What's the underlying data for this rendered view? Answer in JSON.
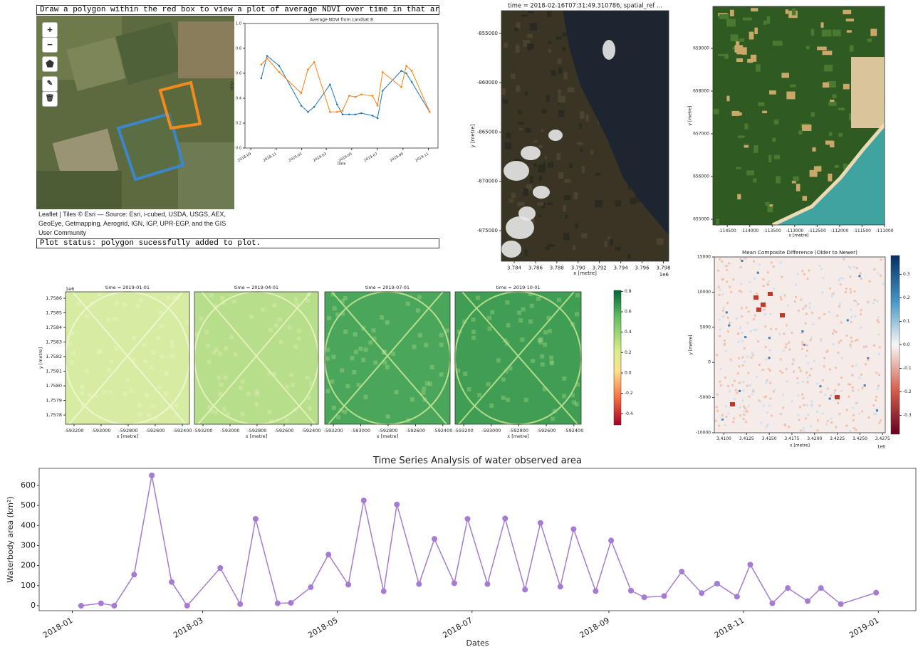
{
  "map": {
    "instruction": "Draw a polygon within the red box to view a plot of average NDVI over time in that area.",
    "zoom_in": "+",
    "zoom_out": "−",
    "attribution": "Leaflet | Tiles © Esri — Source: Esri, i-cubed, USDA, USGS, AEX, GeoEye, Getmapping, Aerogrid, IGN, IGP, UPR-EGP, and the GIS User Community",
    "status": "Plot status: polygon sucessfully added to plot."
  },
  "chart_data": [
    {
      "type": "line",
      "title": "Average NDVI from Landsat 8",
      "xlabel": "Date",
      "ylabel": "NDVI",
      "x": [
        "2018-09-26",
        "2018-10-10",
        "2018-11-08",
        "2018-12-31",
        "2019-01-16",
        "2019-01-31",
        "2019-03-10",
        "2019-03-27",
        "2019-04-09",
        "2019-04-25",
        "2019-05-10",
        "2019-05-24",
        "2019-06-20",
        "2019-07-02",
        "2019-07-14",
        "2019-08-28",
        "2019-09-09",
        "2019-09-22",
        "2019-11-04"
      ],
      "series": [
        {
          "color": "#1f77b4",
          "values": [
            0.56,
            0.74,
            0.66,
            0.34,
            0.29,
            0.33,
            0.51,
            0.35,
            0.27,
            0.27,
            0.27,
            0.28,
            0.26,
            0.24,
            0.46,
            0.62,
            0.6,
            0.53,
            0.29
          ]
        },
        {
          "color": "#ff7f0e",
          "values": [
            0.67,
            0.72,
            0.61,
            0.44,
            0.63,
            0.69,
            0.29,
            0.29,
            0.3,
            0.42,
            0.41,
            0.43,
            0.42,
            0.34,
            0.61,
            0.49,
            0.66,
            0.62,
            0.29
          ]
        }
      ],
      "marker": true,
      "xlim": [
        "2018-08-18",
        "2019-11-24"
      ],
      "ylim": [
        0,
        1
      ],
      "xticks": [
        {
          "value": "2018-09-01",
          "label": "2018-09"
        },
        {
          "value": "2018-11-01",
          "label": "2018-11"
        },
        {
          "value": "2019-01-01",
          "label": "2019-01"
        },
        {
          "value": "2019-03-01",
          "label": "2019-03"
        },
        {
          "value": "2019-05-01",
          "label": "2019-05"
        },
        {
          "value": "2019-07-01",
          "label": "2019-07"
        },
        {
          "value": "2019-09-01",
          "label": "2019-09"
        },
        {
          "value": "2019-11-01",
          "label": "2019-11"
        }
      ],
      "yticks": [
        {
          "value": 0,
          "label": "0.0"
        },
        0.2,
        0.4,
        0.6,
        0.8,
        {
          "value": 1,
          "label": "1.0"
        }
      ]
    },
    {
      "type": "image",
      "title": "time = 2018-02-16T07:31:49.310786, spatial_ref ...",
      "xlabel": "x [metre]",
      "ylabel": "y [metre]",
      "x_offset_label": "1e6",
      "xlim": [
        3782800,
        3798500
      ],
      "ylim": [
        -878100,
        -852700
      ],
      "xticks": [
        {
          "value": 3784000,
          "label": "3.784"
        },
        {
          "value": 3786000,
          "label": "3.786"
        },
        {
          "value": 3788000,
          "label": "3.788"
        },
        {
          "value": 3790000,
          "label": "3.790"
        },
        {
          "value": 3792000,
          "label": "3.792"
        },
        {
          "value": 3794000,
          "label": "3.794"
        },
        {
          "value": 3796000,
          "label": "3.796"
        },
        {
          "value": 3798000,
          "label": "3.798"
        }
      ],
      "yticks": [
        -855000,
        -860000,
        -865000,
        -870000,
        -875000
      ]
    },
    {
      "type": "image",
      "xlabel": "x [metre]",
      "ylabel": "y [metre]",
      "xlim": [
        -114820,
        -111000
      ],
      "ylim": [
        654867,
        659983
      ],
      "xticks": [
        -114500,
        -114000,
        -113500,
        -113000,
        -112500,
        -112000,
        -111500,
        -111000
      ],
      "yticks": [
        659000,
        658000,
        657000,
        656000,
        655000
      ]
    },
    {
      "type": "image_grid",
      "titles": [
        "time = 2019-01-01",
        "time = 2019-04-01",
        "time = 2019-07-01",
        "time = 2019-10-01"
      ],
      "xlabel": "x [metre]",
      "ylabel": "y [metre]",
      "y_offset_label": "1e6",
      "xlim": [
        -593263,
        -592347
      ],
      "ylim": [
        1757737,
        1758644
      ],
      "xticks": [
        -593200,
        -593000,
        -592800,
        -592600,
        -592400
      ],
      "yticks": [
        {
          "value": 1758600,
          "label": "1.7586"
        },
        {
          "value": 1758500,
          "label": "1.7585"
        },
        {
          "value": 1758400,
          "label": "1.7584"
        },
        {
          "value": 1758300,
          "label": "1.7583"
        },
        {
          "value": 1758200,
          "label": "1.7582"
        },
        {
          "value": 1758100,
          "label": "1.7581"
        },
        {
          "value": 1758000,
          "label": "1.7580"
        },
        {
          "value": 1757900,
          "label": "1.7579"
        },
        {
          "value": 1757800,
          "label": "1.7578"
        }
      ],
      "colorbar": {
        "lim": [
          -0.51,
          0.81
        ],
        "ticks": [
          0.8,
          0.6,
          0.4,
          0.2,
          {
            "value": 0,
            "label": "0.0"
          },
          -0.2,
          -0.4
        ]
      }
    },
    {
      "type": "heatmap",
      "title": "Mean Composite Difference (Older to Newer)",
      "xlabel": "x [metre]",
      "ylabel": "y [metre]",
      "x_offset_label": "1e6",
      "xlim": [
        3408950,
        3427790
      ],
      "ylim": [
        -10000,
        15000
      ],
      "xticks": [
        {
          "value": 3410000,
          "label": "3.4100"
        },
        {
          "value": 3412500,
          "label": "3.4125"
        },
        {
          "value": 3415000,
          "label": "3.4150"
        },
        {
          "value": 3417500,
          "label": "3.4175"
        },
        {
          "value": 3420000,
          "label": "3.4200"
        },
        {
          "value": 3422500,
          "label": "3.4225"
        },
        {
          "value": 3425000,
          "label": "3.4250"
        },
        {
          "value": 3427500,
          "label": "3.4275"
        }
      ],
      "yticks": [
        15000,
        10000,
        5000,
        0,
        -5000,
        -10000
      ],
      "colorbar": {
        "lim": [
          -0.38,
          0.38
        ],
        "ticks": [
          0.3,
          0.2,
          0.1,
          {
            "value": 0,
            "label": "0.0"
          },
          -0.1,
          -0.2,
          -0.3
        ]
      }
    },
    {
      "type": "line",
      "title": "Time Series Analysis of water observed area",
      "xlabel": "Dates",
      "ylabel": "Waterbody area (km²)",
      "x": [
        "2018-01-05",
        "2018-01-14",
        "2018-01-20",
        "2018-01-29",
        "2018-02-06",
        "2018-02-15",
        "2018-02-22",
        "2018-03-09",
        "2018-03-18",
        "2018-03-25",
        "2018-04-04",
        "2018-04-10",
        "2018-04-19",
        "2018-04-27",
        "2018-05-06",
        "2018-05-13",
        "2018-05-22",
        "2018-05-28",
        "2018-06-07",
        "2018-06-14",
        "2018-06-23",
        "2018-06-29",
        "2018-07-08",
        "2018-07-16",
        "2018-07-25",
        "2018-08-01",
        "2018-08-10",
        "2018-08-16",
        "2018-08-26",
        "2018-09-02",
        "2018-09-11",
        "2018-09-17",
        "2018-09-26",
        "2018-10-04",
        "2018-10-13",
        "2018-10-20",
        "2018-10-29",
        "2018-11-04",
        "2018-11-14",
        "2018-11-21",
        "2018-11-30",
        "2018-12-06",
        "2018-12-15",
        "2018-12-31"
      ],
      "values": [
        0,
        12,
        0,
        155,
        650,
        118,
        0,
        188,
        8,
        433,
        12,
        14,
        92,
        255,
        105,
        525,
        72,
        505,
        108,
        333,
        112,
        433,
        108,
        435,
        80,
        413,
        95,
        382,
        73,
        325,
        75,
        42,
        48,
        170,
        63,
        110,
        45,
        205,
        12,
        88,
        23,
        88,
        8,
        65
      ],
      "color": "#a57bd3",
      "marker": true,
      "xlim": [
        "2017-12-17",
        "2019-01-18"
      ],
      "ylim": [
        -25,
        685
      ],
      "xticks": [
        {
          "value": "2018-01-01",
          "label": "2018-01"
        },
        {
          "value": "2018-03-01",
          "label": "2018-03"
        },
        {
          "value": "2018-05-01",
          "label": "2018-05"
        },
        {
          "value": "2018-07-01",
          "label": "2018-07"
        },
        {
          "value": "2018-09-01",
          "label": "2018-09"
        },
        {
          "value": "2018-11-01",
          "label": "2018-11"
        },
        {
          "value": "2019-01-01",
          "label": "2019-01"
        }
      ],
      "yticks": [
        0,
        100,
        200,
        300,
        400,
        500,
        600
      ]
    }
  ]
}
